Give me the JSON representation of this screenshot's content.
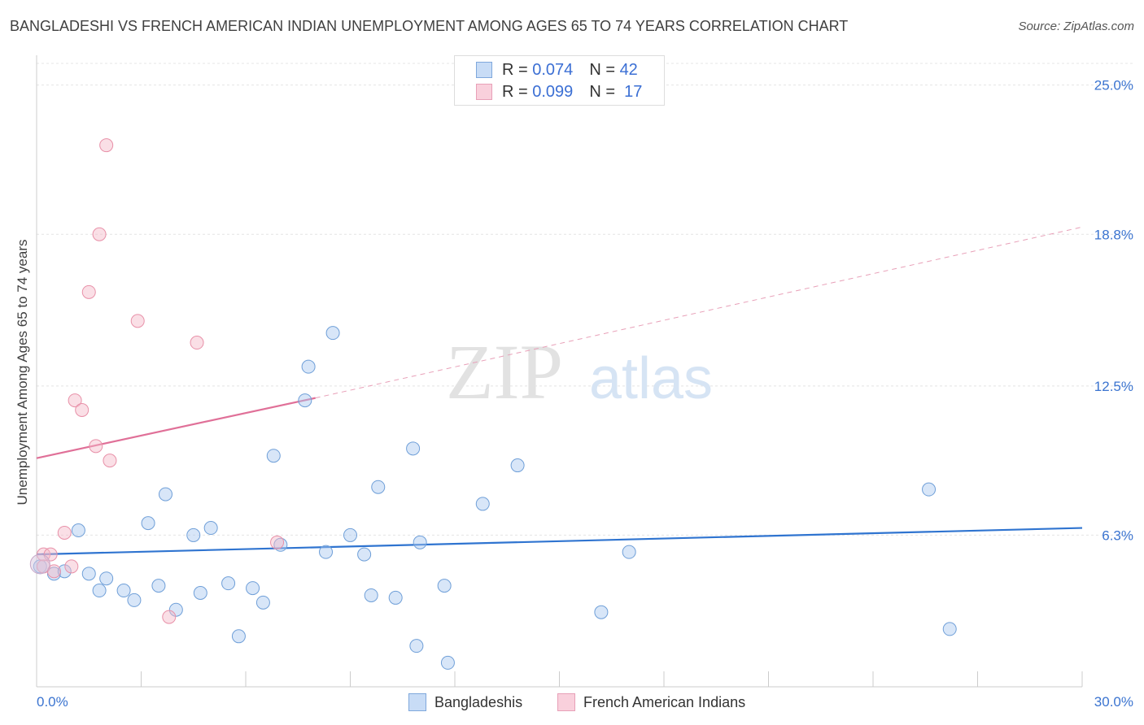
{
  "header": {
    "title": "BANGLADESHI VS FRENCH AMERICAN INDIAN UNEMPLOYMENT AMONG AGES 65 TO 74 YEARS CORRELATION CHART",
    "source": "Source: ZipAtlas.com"
  },
  "watermark": {
    "zip": "ZIP",
    "atlas": "atlas"
  },
  "legend": {
    "rows": [
      {
        "r_label": "R =",
        "r_value": "0.074",
        "n_label": "N =",
        "n_value": "42",
        "color": "#a8c8f0"
      },
      {
        "r_label": "R =",
        "r_value": "0.099",
        "n_label": "N =",
        "n_value": "17",
        "color": "#f5b8c8"
      }
    ]
  },
  "bottom_legend": {
    "items": [
      {
        "label": "Bangladeshis",
        "color": "#a8c8f0"
      },
      {
        "label": "French American Indians",
        "color": "#f5b8c8"
      }
    ]
  },
  "chart_data": {
    "type": "scatter",
    "title": "BANGLADESHI VS FRENCH AMERICAN INDIAN UNEMPLOYMENT AMONG AGES 65 TO 74 YEARS CORRELATION CHART",
    "xlabel": "",
    "ylabel": "Unemployment Among Ages 65 to 74 years",
    "xlim": [
      0,
      30
    ],
    "ylim": [
      0,
      25.9
    ],
    "x_tick_labels": [
      "0.0%",
      "30.0%"
    ],
    "y_ticks": [
      6.3,
      12.5,
      18.8,
      25.0
    ],
    "y_tick_labels": [
      "6.3%",
      "12.5%",
      "18.8%",
      "25.0%"
    ],
    "grid": true,
    "legend_position": "top-center",
    "series": [
      {
        "name": "Bangladeshis",
        "color": "#a8c8f0",
        "stroke": "#6f9fd8",
        "points": [
          [
            0.1,
            5.0
          ],
          [
            0.5,
            4.7
          ],
          [
            0.8,
            4.8
          ],
          [
            1.2,
            6.5
          ],
          [
            1.5,
            4.7
          ],
          [
            1.8,
            4.0
          ],
          [
            2.0,
            4.5
          ],
          [
            2.5,
            4.0
          ],
          [
            2.8,
            3.6
          ],
          [
            3.5,
            4.2
          ],
          [
            3.7,
            8.0
          ],
          [
            3.2,
            6.8
          ],
          [
            4.0,
            3.2
          ],
          [
            4.5,
            6.3
          ],
          [
            4.7,
            3.9
          ],
          [
            5.0,
            6.6
          ],
          [
            5.5,
            4.3
          ],
          [
            5.8,
            2.1
          ],
          [
            6.2,
            4.1
          ],
          [
            6.5,
            3.5
          ],
          [
            6.8,
            9.6
          ],
          [
            7.0,
            5.9
          ],
          [
            7.7,
            11.9
          ],
          [
            7.8,
            13.3
          ],
          [
            8.3,
            5.6
          ],
          [
            8.5,
            14.7
          ],
          [
            9.0,
            6.3
          ],
          [
            9.4,
            5.5
          ],
          [
            9.6,
            3.8
          ],
          [
            9.8,
            8.3
          ],
          [
            10.3,
            3.7
          ],
          [
            10.8,
            9.9
          ],
          [
            10.9,
            1.7
          ],
          [
            11.0,
            6.0
          ],
          [
            11.8,
            1.0
          ],
          [
            11.7,
            4.2
          ],
          [
            12.8,
            7.6
          ],
          [
            13.8,
            9.2
          ],
          [
            16.2,
            3.1
          ],
          [
            17.0,
            5.6
          ],
          [
            25.6,
            8.2
          ],
          [
            26.2,
            2.4
          ]
        ]
      },
      {
        "name": "French American Indians",
        "color": "#f5b8c8",
        "stroke": "#e890a8",
        "points": [
          [
            0.2,
            5.5
          ],
          [
            0.4,
            5.5
          ],
          [
            0.8,
            6.4
          ],
          [
            1.0,
            5.0
          ],
          [
            1.1,
            11.9
          ],
          [
            1.3,
            11.5
          ],
          [
            1.5,
            16.4
          ],
          [
            1.7,
            10.0
          ],
          [
            1.8,
            18.8
          ],
          [
            2.0,
            22.5
          ],
          [
            2.1,
            9.4
          ],
          [
            2.9,
            15.2
          ],
          [
            3.8,
            2.9
          ],
          [
            4.6,
            14.3
          ],
          [
            6.9,
            6.0
          ],
          [
            0.2,
            5.0
          ],
          [
            0.5,
            4.8
          ]
        ]
      }
    ],
    "trend_lines": [
      {
        "series": "Bangladeshis",
        "x": [
          0,
          30
        ],
        "y": [
          5.5,
          6.6
        ],
        "style": "solid",
        "color": "#2f74d0"
      },
      {
        "series": "French American Indians",
        "x": [
          0,
          8
        ],
        "y": [
          9.5,
          12.0
        ],
        "style": "solid",
        "color": "#e07098"
      },
      {
        "series": "French American Indians",
        "x": [
          8,
          30
        ],
        "y": [
          12.0,
          19.1
        ],
        "style": "dashed",
        "color": "#e8a0b8"
      }
    ]
  }
}
